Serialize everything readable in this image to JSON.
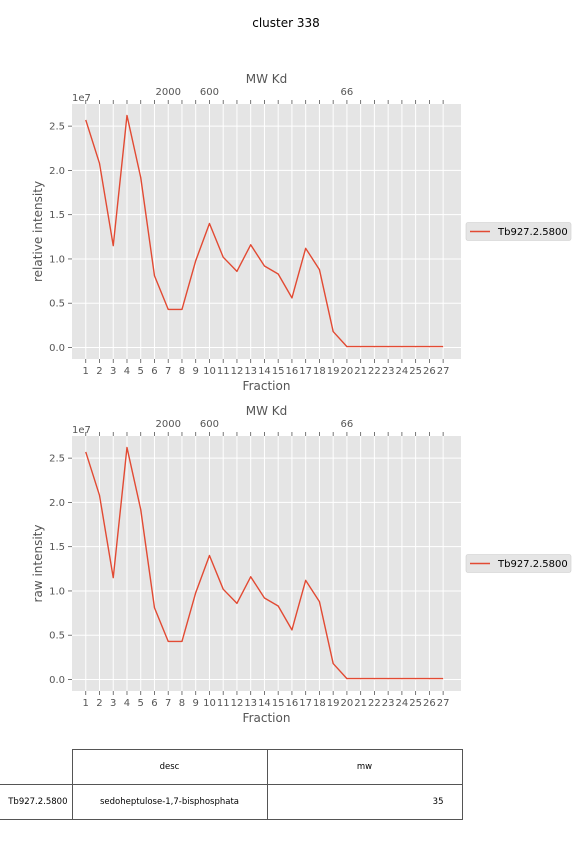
{
  "suptitle": "cluster 338",
  "chart_data": [
    {
      "type": "line",
      "title": "MW Kd",
      "xlabel": "Fraction",
      "ylabel": "relative intensity",
      "y_offset_label": "1e7",
      "x": [
        1,
        2,
        3,
        4,
        5,
        6,
        7,
        8,
        9,
        10,
        11,
        12,
        13,
        14,
        15,
        16,
        17,
        18,
        19,
        20,
        21,
        22,
        23,
        24,
        25,
        26,
        27
      ],
      "xticklabels": [
        "1",
        "2",
        "3",
        "4",
        "5",
        "6",
        "7",
        "8",
        "9",
        "10",
        "11",
        "12",
        "13",
        "14",
        "15",
        "16",
        "17",
        "18",
        "19",
        "20",
        "21",
        "22",
        "23",
        "24",
        "25",
        "26",
        "27"
      ],
      "top_axis_labels": [
        {
          "x": 7,
          "label": "2000"
        },
        {
          "x": 10,
          "label": "600"
        },
        {
          "x": 20,
          "label": "66"
        }
      ],
      "ylim": [
        -0.13,
        2.75
      ],
      "yticks": [
        0.0,
        0.5,
        1.0,
        1.5,
        2.0,
        2.5
      ],
      "yticklabels": [
        "0.0",
        "0.5",
        "1.0",
        "1.5",
        "2.0",
        "2.5"
      ],
      "grid": true,
      "legend_position": "right",
      "series": [
        {
          "name": "Tb927.2.5800",
          "color": "#E24A33",
          "values": [
            2.57,
            2.08,
            1.15,
            2.62,
            1.92,
            0.81,
            0.43,
            0.43,
            0.98,
            1.4,
            1.02,
            0.86,
            1.16,
            0.92,
            0.83,
            0.56,
            1.12,
            0.88,
            0.18,
            0.01,
            0.01,
            0.01,
            0.01,
            0.01,
            0.01,
            0.01,
            0.01
          ]
        }
      ]
    },
    {
      "type": "line",
      "title": "MW Kd",
      "xlabel": "Fraction",
      "ylabel": "raw intensity",
      "y_offset_label": "1e7",
      "x": [
        1,
        2,
        3,
        4,
        5,
        6,
        7,
        8,
        9,
        10,
        11,
        12,
        13,
        14,
        15,
        16,
        17,
        18,
        19,
        20,
        21,
        22,
        23,
        24,
        25,
        26,
        27
      ],
      "xticklabels": [
        "1",
        "2",
        "3",
        "4",
        "5",
        "6",
        "7",
        "8",
        "9",
        "10",
        "11",
        "12",
        "13",
        "14",
        "15",
        "16",
        "17",
        "18",
        "19",
        "20",
        "21",
        "22",
        "23",
        "24",
        "25",
        "26",
        "27"
      ],
      "top_axis_labels": [
        {
          "x": 7,
          "label": "2000"
        },
        {
          "x": 10,
          "label": "600"
        },
        {
          "x": 20,
          "label": "66"
        }
      ],
      "ylim": [
        -0.13,
        2.75
      ],
      "yticks": [
        0.0,
        0.5,
        1.0,
        1.5,
        2.0,
        2.5
      ],
      "yticklabels": [
        "0.0",
        "0.5",
        "1.0",
        "1.5",
        "2.0",
        "2.5"
      ],
      "grid": true,
      "legend_position": "right",
      "series": [
        {
          "name": "Tb927.2.5800",
          "color": "#E24A33",
          "values": [
            2.57,
            2.08,
            1.15,
            2.62,
            1.92,
            0.81,
            0.43,
            0.43,
            0.98,
            1.4,
            1.02,
            0.86,
            1.16,
            0.92,
            0.83,
            0.56,
            1.12,
            0.88,
            0.18,
            0.01,
            0.01,
            0.01,
            0.01,
            0.01,
            0.01,
            0.01,
            0.01
          ]
        }
      ]
    }
  ],
  "table": {
    "headers": [
      "desc",
      "mw"
    ],
    "rows": [
      {
        "row_label": "Tb927.2.5800",
        "desc": "sedoheptulose-1,7-bisphosphata",
        "mw": "35"
      }
    ]
  }
}
